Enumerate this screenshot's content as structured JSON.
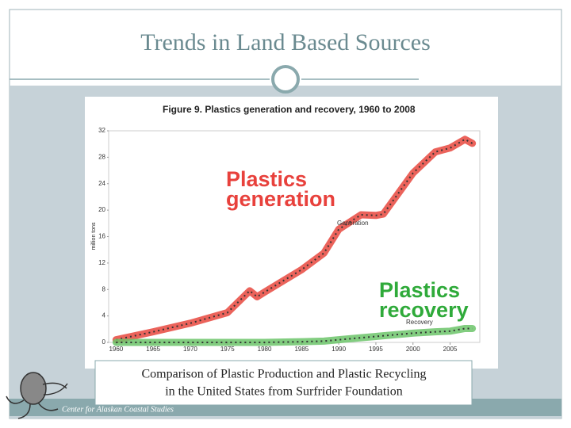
{
  "slide_title": "Trends in Land Based Sources",
  "caption": [
    "Comparison of Plastic Production and Plastic Recycling",
    "in the United States from Surfrider Foundation"
  ],
  "footer": "Center for Alaskan Coastal Studies",
  "chart_data": {
    "type": "line",
    "title": "Figure 9. Plastics generation and recovery, 1960 to 2008",
    "y_label": "million tons",
    "x": [
      1960,
      1965,
      1970,
      1975,
      1978,
      1979,
      1980,
      1985,
      1988,
      1990,
      1993,
      1995,
      1996,
      2000,
      2003,
      2005,
      2007,
      2008
    ],
    "series": [
      {
        "name": "Generation",
        "color": "#e8483e",
        "values": [
          0.4,
          1.6,
          2.9,
          4.5,
          7.8,
          6.9,
          7.6,
          11,
          13.5,
          17.1,
          19.3,
          19.2,
          19.4,
          25.6,
          28.8,
          29.4,
          30.7,
          30.1
        ]
      },
      {
        "name": "Recovery",
        "color": "#6cc46a",
        "values": [
          0,
          0,
          0,
          0,
          0,
          0,
          0,
          0.1,
          0.2,
          0.4,
          0.7,
          0.9,
          1.0,
          1.4,
          1.6,
          1.7,
          2.1,
          2.1
        ]
      }
    ],
    "annotations": [
      {
        "lines": [
          "Plastics",
          "generation"
        ],
        "color": "#e8413c"
      },
      {
        "lines": [
          "Plastics",
          "recovery"
        ],
        "color": "#2faa3a"
      }
    ],
    "xlim": [
      1959,
      2009
    ],
    "xticks": [
      1960,
      1965,
      1970,
      1975,
      1980,
      1985,
      1990,
      1995,
      2000,
      2005
    ],
    "ylim": [
      0,
      32
    ],
    "yticks": [
      0,
      4,
      8,
      12,
      16,
      20,
      24,
      28,
      32
    ]
  }
}
